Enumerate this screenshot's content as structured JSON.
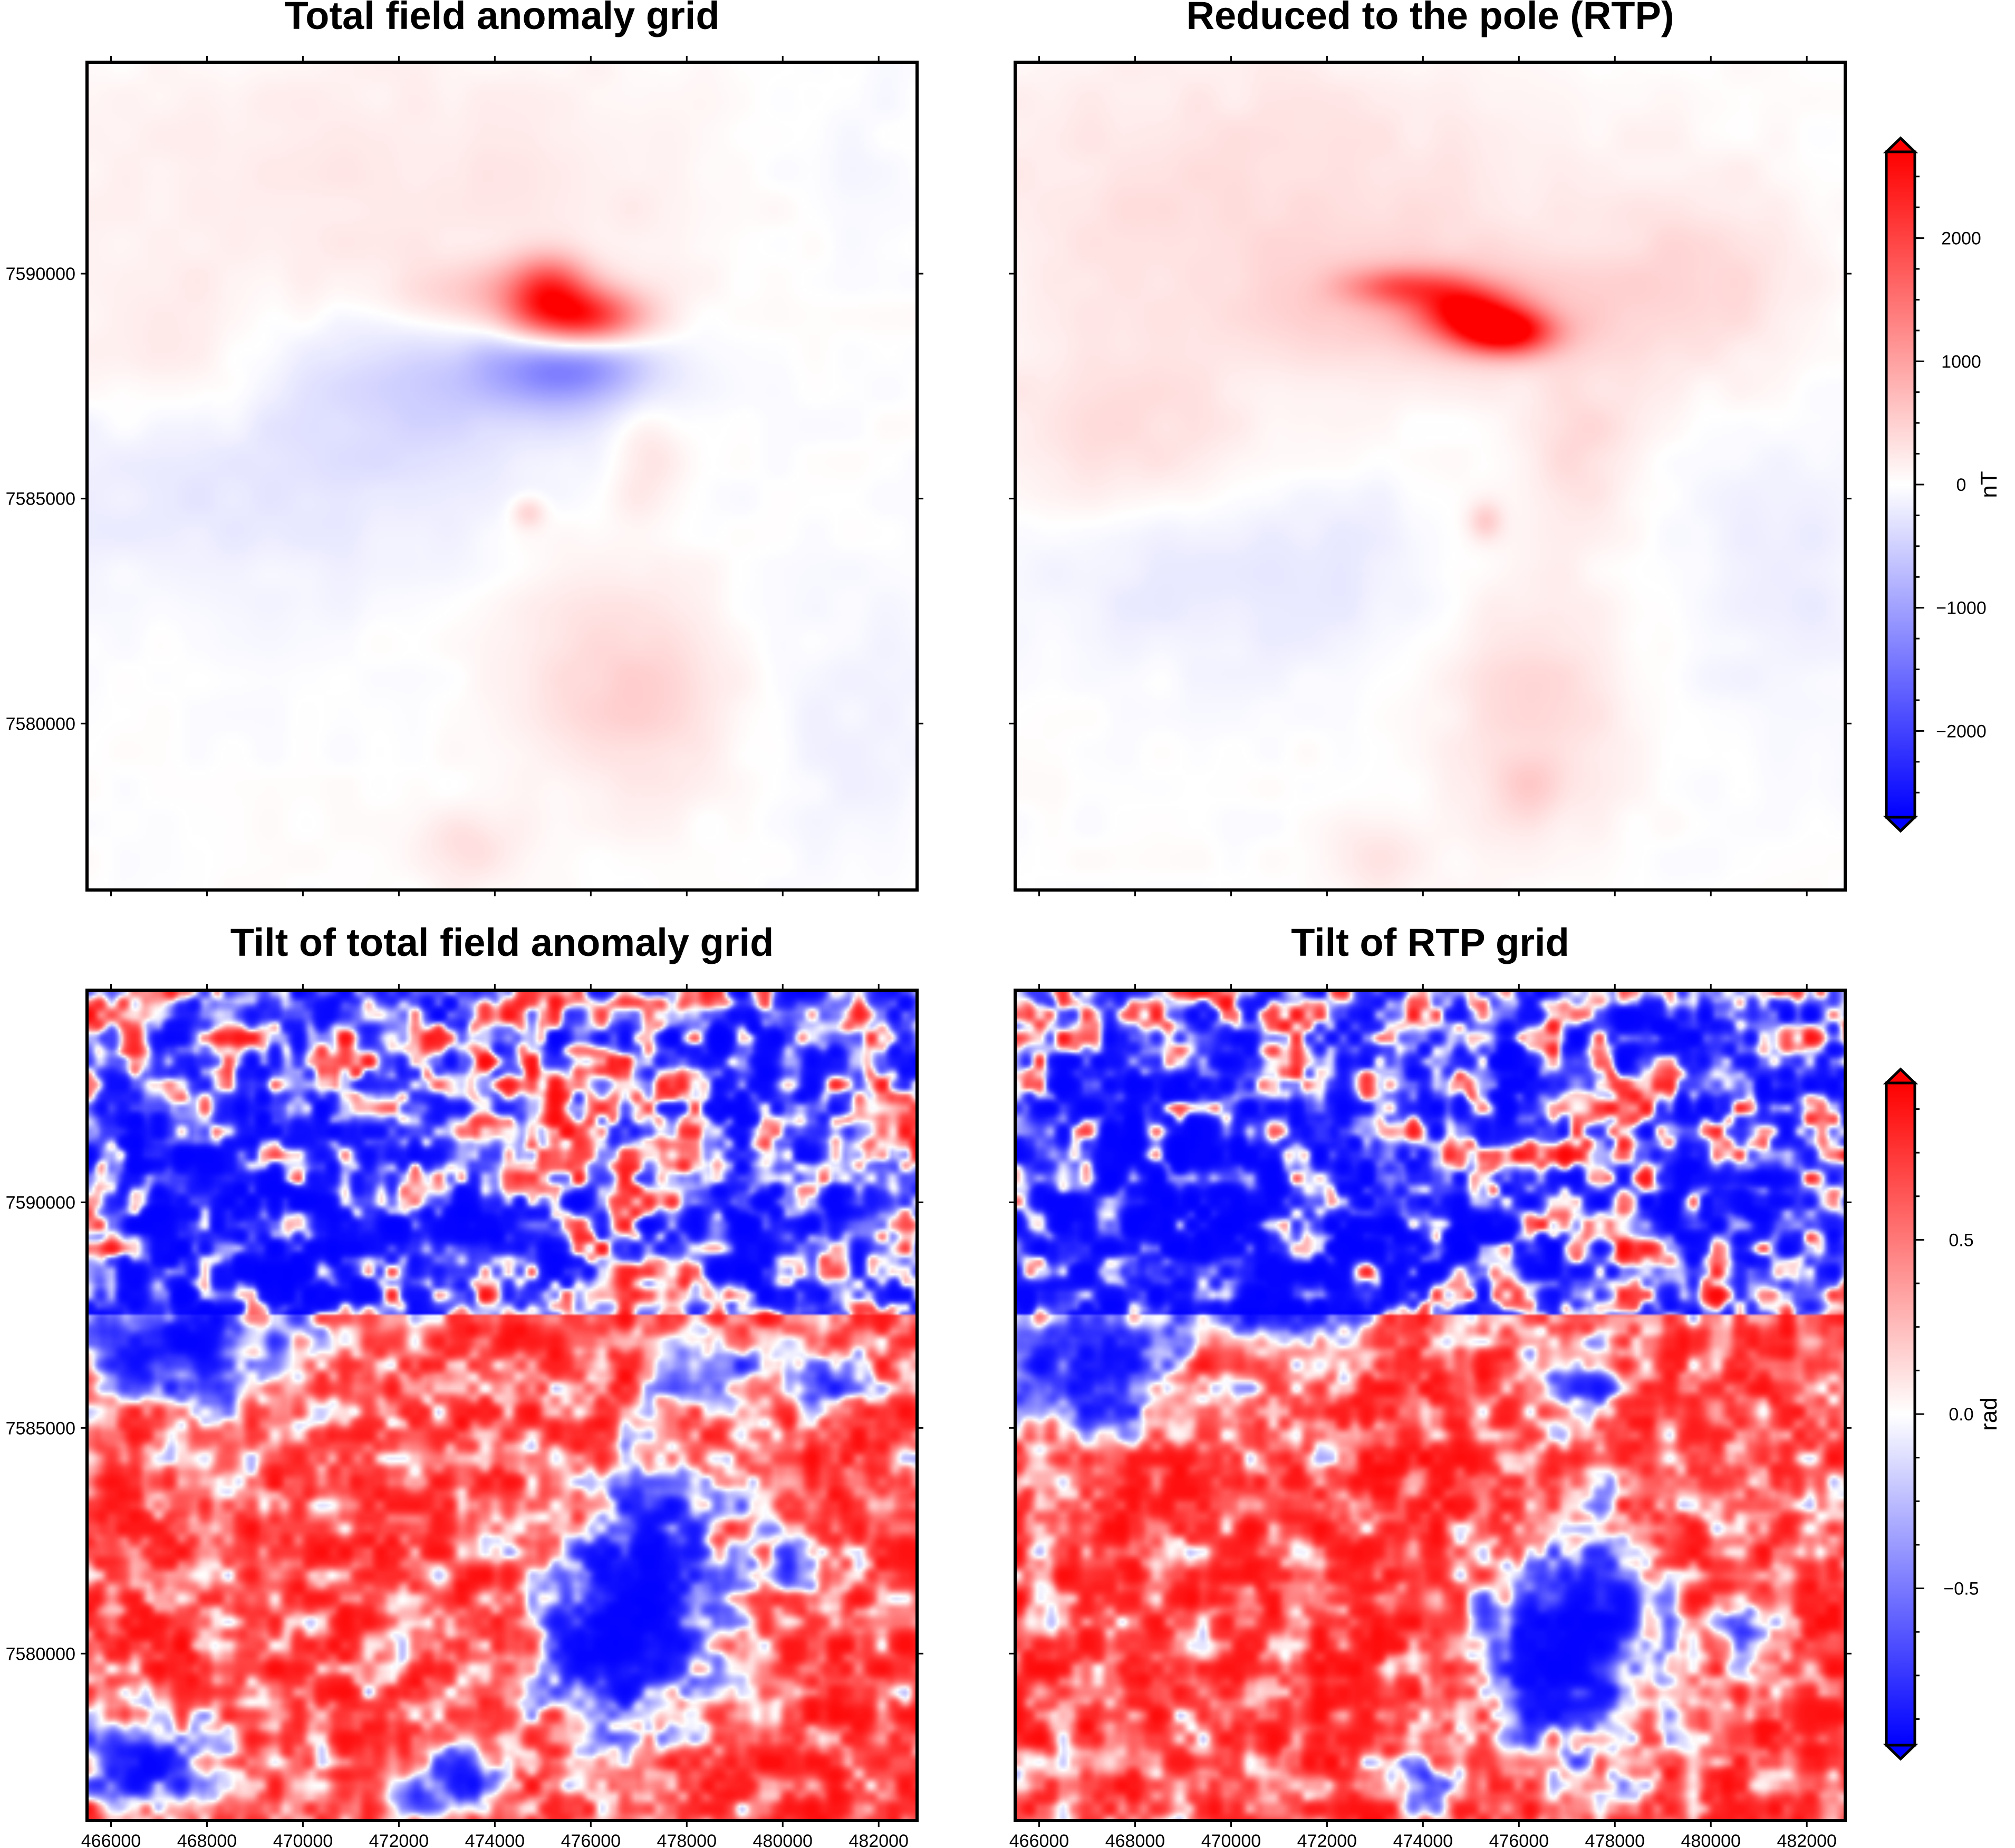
{
  "chart_data": [
    {
      "type": "heatmap",
      "title": "Total field anomaly grid",
      "x_range": [
        465500,
        482800
      ],
      "y_range": [
        7576300,
        7594700
      ],
      "x_ticks": [
        466000,
        468000,
        470000,
        472000,
        474000,
        476000,
        478000,
        480000,
        482000
      ],
      "x_tick_labels": [],
      "y_ticks": [
        7580000,
        7585000,
        7590000
      ],
      "y_tick_labels": [
        "7580000",
        "7585000",
        "7590000"
      ],
      "colorbar": "cb1",
      "grid": false,
      "features": [
        {
          "x": 475800,
          "y": 7589000,
          "value": 2300,
          "sx": 900,
          "sy": 450
        },
        {
          "x": 475100,
          "y": 7589700,
          "value": 1500,
          "sx": 600,
          "sy": 500
        },
        {
          "x": 474000,
          "y": 7589400,
          "value": 700,
          "sx": 1600,
          "sy": 600
        },
        {
          "x": 475500,
          "y": 7587900,
          "value": -1100,
          "sx": 1100,
          "sy": 600
        },
        {
          "x": 473500,
          "y": 7588000,
          "value": -500,
          "sx": 2500,
          "sy": 1200
        },
        {
          "x": 469000,
          "y": 7585600,
          "value": -300,
          "sx": 4500,
          "sy": 1800
        },
        {
          "x": 472000,
          "y": 7591800,
          "value": 250,
          "sx": 5500,
          "sy": 2300
        },
        {
          "x": 467200,
          "y": 7587800,
          "value": 250,
          "sx": 1700,
          "sy": 1400
        },
        {
          "x": 477200,
          "y": 7586000,
          "value": 350,
          "sx": 550,
          "sy": 900
        },
        {
          "x": 474700,
          "y": 7584700,
          "value": 500,
          "sx": 250,
          "sy": 250
        },
        {
          "x": 476100,
          "y": 7581500,
          "value": 350,
          "sx": 1500,
          "sy": 2100
        },
        {
          "x": 477600,
          "y": 7580300,
          "value": 250,
          "sx": 1300,
          "sy": 1300
        },
        {
          "x": 473400,
          "y": 7577200,
          "value": 350,
          "sx": 700,
          "sy": 600
        },
        {
          "x": 481200,
          "y": 7592400,
          "value": -120,
          "sx": 1500,
          "sy": 1600
        },
        {
          "x": 481300,
          "y": 7579800,
          "value": -150,
          "sx": 1600,
          "sy": 2000
        }
      ]
    },
    {
      "type": "heatmap",
      "title": "Reduced to the pole (RTP)",
      "x_range": [
        465500,
        482800
      ],
      "y_range": [
        7576300,
        7594700
      ],
      "x_ticks": [
        466000,
        468000,
        470000,
        472000,
        474000,
        476000,
        478000,
        480000,
        482000
      ],
      "x_tick_labels": [],
      "y_ticks": [
        7580000,
        7585000,
        7590000
      ],
      "y_tick_labels": [],
      "colorbar": "cb1",
      "grid": false,
      "features": [
        {
          "x": 475700,
          "y": 7588700,
          "value": 2600,
          "sx": 700,
          "sy": 350
        },
        {
          "x": 474900,
          "y": 7589200,
          "value": 2000,
          "sx": 700,
          "sy": 400
        },
        {
          "x": 473600,
          "y": 7589700,
          "value": 1200,
          "sx": 800,
          "sy": 300
        },
        {
          "x": 474500,
          "y": 7589200,
          "value": 600,
          "sx": 2400,
          "sy": 900
        },
        {
          "x": 470500,
          "y": 7591500,
          "value": 350,
          "sx": 5000,
          "sy": 2600
        },
        {
          "x": 467600,
          "y": 7586400,
          "value": 350,
          "sx": 1800,
          "sy": 1300
        },
        {
          "x": 479800,
          "y": 7589800,
          "value": 350,
          "sx": 1600,
          "sy": 1600
        },
        {
          "x": 477300,
          "y": 7586200,
          "value": 350,
          "sx": 800,
          "sy": 1200
        },
        {
          "x": 470500,
          "y": 7583300,
          "value": -250,
          "sx": 4000,
          "sy": 1500
        },
        {
          "x": 476300,
          "y": 7580800,
          "value": 400,
          "sx": 1400,
          "sy": 2300
        },
        {
          "x": 475300,
          "y": 7584500,
          "value": 500,
          "sx": 250,
          "sy": 300
        },
        {
          "x": 476200,
          "y": 7578600,
          "value": 350,
          "sx": 500,
          "sy": 500
        },
        {
          "x": 473100,
          "y": 7577000,
          "value": 300,
          "sx": 800,
          "sy": 600
        },
        {
          "x": 481600,
          "y": 7583200,
          "value": -180,
          "sx": 1500,
          "sy": 2600
        }
      ]
    },
    {
      "type": "heatmap",
      "title": "Tilt of total field anomaly grid",
      "x_range": [
        465500,
        482800
      ],
      "y_range": [
        7576300,
        7594700
      ],
      "x_ticks": [
        466000,
        468000,
        470000,
        472000,
        474000,
        476000,
        478000,
        480000,
        482000
      ],
      "x_tick_labels": [
        "466000",
        "468000",
        "470000",
        "472000",
        "474000",
        "476000",
        "478000",
        "480000",
        "482000"
      ],
      "y_ticks": [
        7580000,
        7585000,
        7590000
      ],
      "y_tick_labels": [
        "7580000",
        "7585000",
        "7590000"
      ],
      "colorbar": "cb2",
      "grid": false,
      "features": [
        {
          "x": 477400,
          "y": 7581500,
          "value": -1.6,
          "sx": 1100,
          "sy": 1900
        },
        {
          "x": 476200,
          "y": 7580200,
          "value": -1.3,
          "sx": 900,
          "sy": 1300
        },
        {
          "x": 468500,
          "y": 7589300,
          "value": -0.9,
          "sx": 2400,
          "sy": 3000
        },
        {
          "x": 474000,
          "y": 7589500,
          "value": -1.1,
          "sx": 1300,
          "sy": 500
        },
        {
          "x": 467200,
          "y": 7586800,
          "value": -1.1,
          "sx": 1100,
          "sy": 700
        },
        {
          "x": 478500,
          "y": 7586300,
          "value": -1.0,
          "sx": 700,
          "sy": 700
        },
        {
          "x": 480800,
          "y": 7590800,
          "value": -1.0,
          "sx": 800,
          "sy": 1700
        },
        {
          "x": 479000,
          "y": 7590500,
          "value": -1.0,
          "sx": 450,
          "sy": 1400
        },
        {
          "x": 480800,
          "y": 7586000,
          "value": -0.9,
          "sx": 700,
          "sy": 500
        },
        {
          "x": 478800,
          "y": 7593700,
          "value": -0.8,
          "sx": 1300,
          "sy": 500
        },
        {
          "x": 466800,
          "y": 7577500,
          "value": -1.6,
          "sx": 1000,
          "sy": 800
        },
        {
          "x": 473300,
          "y": 7577400,
          "value": -1.2,
          "sx": 650,
          "sy": 500
        },
        {
          "x": 472500,
          "y": 7576800,
          "value": -1.0,
          "sx": 500,
          "sy": 400
        },
        {
          "x": 480000,
          "y": 7582000,
          "value": -0.8,
          "sx": 450,
          "sy": 700
        },
        {
          "x": 472200,
          "y": 7580200,
          "value": -0.8,
          "sx": 350,
          "sy": 450
        }
      ]
    },
    {
      "type": "heatmap",
      "title": "Tilt of RTP grid",
      "x_range": [
        465500,
        482800
      ],
      "y_range": [
        7576300,
        7594700
      ],
      "x_ticks": [
        466000,
        468000,
        470000,
        472000,
        474000,
        476000,
        478000,
        480000,
        482000
      ],
      "x_tick_labels": [
        "466000",
        "468000",
        "470000",
        "472000",
        "474000",
        "476000",
        "478000",
        "480000",
        "482000"
      ],
      "y_ticks": [
        7580000,
        7585000,
        7590000
      ],
      "y_tick_labels": [],
      "colorbar": "cb2",
      "grid": false,
      "features": [
        {
          "x": 477600,
          "y": 7580500,
          "value": -1.6,
          "sx": 1000,
          "sy": 2000
        },
        {
          "x": 476000,
          "y": 7579800,
          "value": -1.2,
          "sx": 800,
          "sy": 1200
        },
        {
          "x": 466700,
          "y": 7586300,
          "value": -1.4,
          "sx": 1100,
          "sy": 1000
        },
        {
          "x": 468800,
          "y": 7590200,
          "value": -0.9,
          "sx": 2600,
          "sy": 2400
        },
        {
          "x": 474700,
          "y": 7589100,
          "value": -1.2,
          "sx": 1500,
          "sy": 400
        },
        {
          "x": 471000,
          "y": 7587700,
          "value": -1.0,
          "sx": 1000,
          "sy": 500
        },
        {
          "x": 481000,
          "y": 7590400,
          "value": -1.0,
          "sx": 700,
          "sy": 1300
        },
        {
          "x": 479300,
          "y": 7590500,
          "value": -1.0,
          "sx": 400,
          "sy": 1000
        },
        {
          "x": 477400,
          "y": 7586000,
          "value": -1.0,
          "sx": 550,
          "sy": 700
        },
        {
          "x": 480800,
          "y": 7580400,
          "value": -0.9,
          "sx": 500,
          "sy": 700
        },
        {
          "x": 474000,
          "y": 7577200,
          "value": -1.0,
          "sx": 700,
          "sy": 500
        },
        {
          "x": 478600,
          "y": 7593700,
          "value": -0.9,
          "sx": 1000,
          "sy": 500
        },
        {
          "x": 475700,
          "y": 7593000,
          "value": -0.8,
          "sx": 500,
          "sy": 900
        }
      ]
    }
  ],
  "colorbars": {
    "cb1": {
      "label": "nT",
      "range": [
        -2700,
        2700
      ],
      "ticks": [
        -2000,
        -1000,
        0,
        1000,
        2000
      ],
      "tick_labels": [
        "−2000",
        "−1000",
        "0",
        "1000",
        "2000"
      ],
      "colors": [
        "#0000ff",
        "#ffffff",
        "#ff0000"
      ]
    },
    "cb2": {
      "label": "rad",
      "range": [
        -0.95,
        0.95
      ],
      "ticks": [
        -0.5,
        0.0,
        0.5
      ],
      "tick_labels": [
        "−0.5",
        "0.0",
        "0.5"
      ],
      "colors": [
        "#0000ff",
        "#ffffff",
        "#ff0000"
      ]
    }
  }
}
